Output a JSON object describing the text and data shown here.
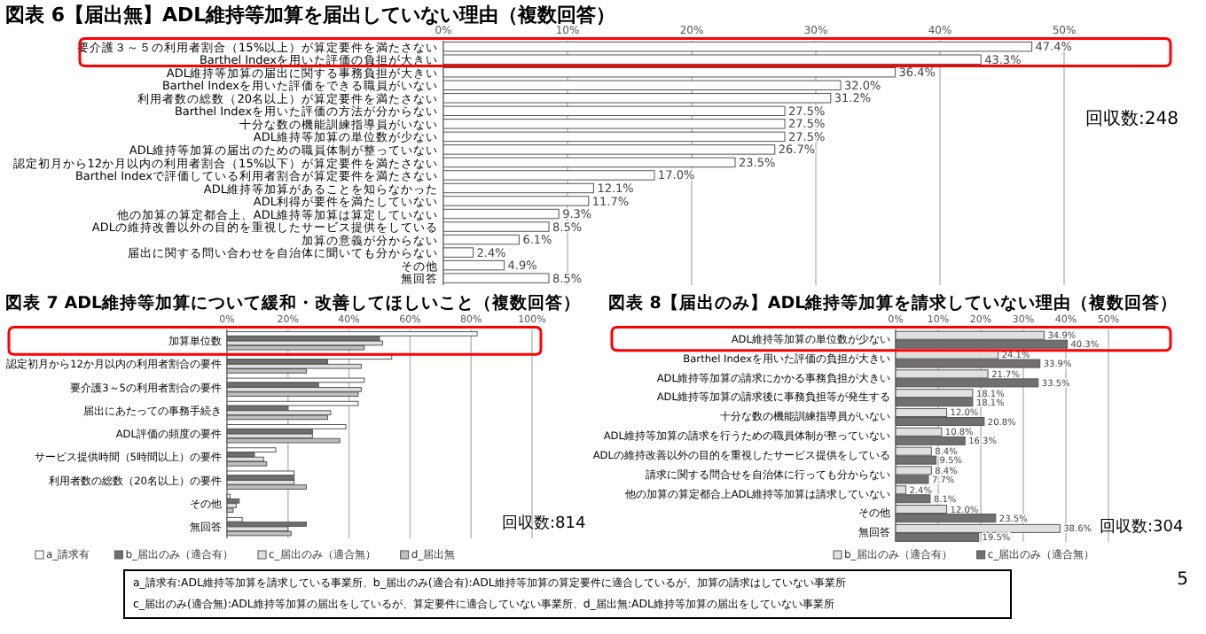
{
  "chart_data": [
    {
      "type": "bar",
      "orientation": "horizontal",
      "title": "図表 6【届出無】ADL維持等加算を届出していない理由（複数回答）",
      "categories": [
        "要介護３～５の利用者割合（15%以上）が算定要件を満たさない",
        "Barthel Indexを用いた評価の負担が大きい",
        "ADL維持等加算の届出に関する事務負担が大きい",
        "Barthel Indexを用いた評価をできる職員がいない",
        "利用者数の総数（20名以上）が算定要件を満たさない",
        "Barthel Indexを用いた評価の方法が分からない",
        "十分な数の機能訓練指導員がいない",
        "ADL維持等加算の単位数が少ない",
        "ADL維持等加算の届出のための職員体制が整っていない",
        "認定初月から12か月以内の利用者割合（15%以下）が算定要件を満たさない",
        "Barthel Indexで評価している利用者割合が算定要件を満たさない",
        "ADL維持等加算があることを知らなかった",
        "ADL利得が要件を満たしていない",
        "他の加算の算定都合上、ADL維持等加算は算定していない",
        "ADLの維持改善以外の目的を重視したサービス提供をしている",
        "加算の意義が分からない",
        "届出に関する問い合わせを自治体に聞いても分からない",
        "その他",
        "無回答"
      ],
      "series": [
        {
          "color": "#ffffff",
          "values": [
            47.4,
            43.3,
            36.4,
            32.0,
            31.2,
            27.5,
            27.5,
            27.5,
            26.7,
            23.5,
            17.0,
            12.1,
            11.7,
            9.3,
            8.5,
            6.1,
            2.4,
            4.9,
            8.5
          ],
          "value_labels": [
            "47.4%",
            "43.3%",
            "36.4%",
            "32.0%",
            "31.2%",
            "27.5%",
            "27.5%",
            "27.5%",
            "26.7%",
            "23.5%",
            "17.0%",
            "12.1%",
            "11.7%",
            "9.3%",
            "8.5%",
            "6.1%",
            "2.4%",
            "4.9%",
            "8.5%"
          ]
        }
      ],
      "xlim": [
        0,
        50
      ],
      "xticks": [
        {
          "value": 0,
          "label": "0%"
        },
        {
          "value": 10,
          "label": "10%"
        },
        {
          "value": 20,
          "label": "20%"
        },
        {
          "value": 30,
          "label": "30%"
        },
        {
          "value": 40,
          "label": "40%"
        },
        {
          "value": 50,
          "label": "50%"
        }
      ],
      "grid": "x",
      "legend": false,
      "annotations": [
        "回収数:248"
      ]
    },
    {
      "type": "bar",
      "orientation": "horizontal",
      "title": "図表 7 ADL維持等加算について緩和・改善してほしいこと（複数回答）",
      "categories": [
        "加算単位数",
        "認定初月から12か月以内の利用者割合の要件",
        "要介護3～5の利用者割合の要件",
        "届出にあたっての事務手続き",
        "ADL評価の頻度の要件",
        "サービス提供時間（5時間以上）の要件",
        "利用者数の総数（20名以上）の要件",
        "その他",
        "無回答"
      ],
      "series": [
        {
          "name": "a_請求有",
          "color": "#ffffff",
          "values": [
            82,
            54,
            45,
            43,
            39,
            16,
            22,
            1,
            5
          ]
        },
        {
          "name": "b_届出のみ（適合有）",
          "color": "#707070",
          "values": [
            50,
            33,
            30,
            20,
            28,
            9,
            22,
            4,
            26
          ]
        },
        {
          "name": "c_届出のみ（適合無）",
          "color": "#e0e0e0",
          "values": [
            51,
            44,
            44,
            34,
            28,
            12,
            22,
            3,
            20
          ]
        },
        {
          "name": "d_届出無",
          "color": "#bfbfbf",
          "values": [
            45,
            26,
            43,
            33,
            37,
            13,
            26,
            2,
            21
          ]
        }
      ],
      "xlim": [
        0,
        100
      ],
      "xticks": [
        {
          "value": 0,
          "label": "0%"
        },
        {
          "value": 20,
          "label": "20%"
        },
        {
          "value": 40,
          "label": "40%"
        },
        {
          "value": 60,
          "label": "60%"
        },
        {
          "value": 80,
          "label": "80%"
        },
        {
          "value": 100,
          "label": "100%"
        }
      ],
      "grid": "x",
      "legend": "bottom",
      "annotations": [
        "回収数:814",
        "a_請求有:ADL維持等加算を請求している事業所、b_届出のみ(適合有):ADL維持等加算の算定要件に適合しているが、加算の請求はしていない事業所",
        "c_届出のみ(適合無):ADL維持等加算の届出をしているが、算定要件に適合していない事業所、d_届出無:ADL維持等加算の届出をしていない事業所"
      ]
    },
    {
      "type": "bar",
      "orientation": "horizontal",
      "title": "図表 8【届出のみ】ADL維持等加算を請求していない理由（複数回答）",
      "categories": [
        "ADL維持等加算の単位数が少ない",
        "Barthel Indexを用いた評価の負担が大きい",
        "ADL維持等加算の請求にかかる事務負担が大きい",
        "ADL維持等加算の請求後に事務負担等が発生する",
        "十分な数の機能訓練指導員がいない",
        "ADL維持等加算の請求を行うための職員体制が整っていない",
        "ADLの維持改善以外の目的を重視したサービス提供をしている",
        "請求に関する問合せを自治体に行っても分からない",
        "他の加算の算定都合上ADL維持等加算は請求していない",
        "その他",
        "無回答"
      ],
      "series": [
        {
          "name": "b_届出のみ（適合有）",
          "color": "#e0e0e0",
          "values": [
            34.9,
            24.1,
            21.7,
            18.1,
            12.0,
            10.8,
            8.4,
            8.4,
            2.4,
            12.0,
            38.6
          ],
          "value_labels": [
            "34.9%",
            "24.1%",
            "21.7%",
            "18.1%",
            "12.0%",
            "10.8%",
            "8.4%",
            "8.4%",
            "2.4%",
            "12.0%",
            "38.6%"
          ]
        },
        {
          "name": "c_届出のみ（適合無）",
          "color": "#707070",
          "values": [
            40.3,
            33.9,
            33.5,
            18.1,
            20.8,
            16.3,
            9.5,
            7.7,
            8.1,
            23.5,
            19.5
          ],
          "value_labels": [
            "40.3%",
            "33.9%",
            "33.5%",
            "18.1%",
            "20.8%",
            "16.3%",
            "9.5%",
            "7.7%",
            "8.1%",
            "23.5%",
            "19.5%"
          ]
        }
      ],
      "xlim": [
        0,
        50
      ],
      "xticks": [
        {
          "value": 0,
          "label": "0%"
        },
        {
          "value": 10,
          "label": "10%"
        },
        {
          "value": 20,
          "label": "20%"
        },
        {
          "value": 30,
          "label": "30%"
        },
        {
          "value": 40,
          "label": "40%"
        },
        {
          "value": 50,
          "label": "50%"
        }
      ],
      "grid": "x",
      "legend": "bottom",
      "annotations": [
        "回収数:304",
        "5"
      ]
    }
  ]
}
